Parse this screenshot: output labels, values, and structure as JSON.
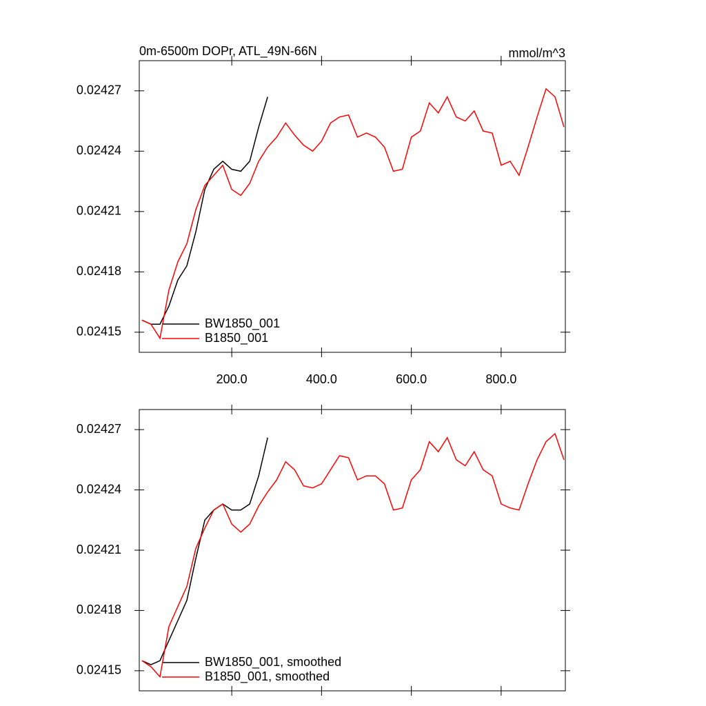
{
  "chart_data": [
    {
      "type": "line",
      "title": "0m-6500m DOPr, ATL_49N-66N",
      "subtitle": "mmol/m^3",
      "x": [
        0,
        20,
        40,
        60,
        80,
        100,
        120,
        140,
        160,
        180,
        200,
        220,
        240,
        260,
        280,
        300,
        320,
        340,
        360,
        380,
        400,
        420,
        440,
        460,
        480,
        500,
        520,
        540,
        560,
        580,
        600,
        620,
        640,
        660,
        680,
        700,
        720,
        740,
        760,
        780,
        800,
        820,
        840,
        860,
        880,
        900,
        920,
        940
      ],
      "series": [
        {
          "name": "BW1850_001",
          "color": "#000000",
          "values": [
            0.024156,
            0.024154,
            0.024154,
            0.024163,
            0.024176,
            0.024183,
            0.0242,
            0.024221,
            0.024231,
            0.024235,
            0.024231,
            0.02423,
            0.024235,
            0.024252,
            0.024267,
            null,
            null,
            null,
            null,
            null,
            null,
            null,
            null,
            null,
            null,
            null,
            null,
            null,
            null,
            null,
            null,
            null,
            null,
            null,
            null,
            null,
            null,
            null,
            null,
            null,
            null,
            null,
            null,
            null,
            null,
            null,
            null,
            null
          ]
        },
        {
          "name": "B1850_001",
          "color": "#ff0000",
          "values": [
            0.024156,
            0.024154,
            0.024147,
            0.024171,
            0.024185,
            0.024194,
            0.024211,
            0.024223,
            0.024228,
            0.024233,
            0.024221,
            0.024218,
            0.024224,
            0.024235,
            0.024242,
            0.024247,
            0.024254,
            0.024248,
            0.024243,
            0.02424,
            0.024245,
            0.024254,
            0.024257,
            0.024258,
            0.024247,
            0.024249,
            0.024247,
            0.024242,
            0.02423,
            0.024231,
            0.024247,
            0.02425,
            0.024264,
            0.024259,
            0.024267,
            0.024257,
            0.024255,
            0.02426,
            0.02425,
            0.024249,
            0.024233,
            0.024235,
            0.024228,
            0.024242,
            0.024257,
            0.024271,
            0.024267,
            0.024252
          ]
        }
      ],
      "xlim": [
        -6,
        943
      ],
      "xticks": [
        {
          "value": 200,
          "label": "200.0"
        },
        {
          "value": 400,
          "label": "400.0"
        },
        {
          "value": 600,
          "label": "600.0"
        },
        {
          "value": 800,
          "label": "800.0"
        }
      ],
      "ylim": [
        0.02414,
        0.024285
      ],
      "yticks": [
        0.02415,
        0.02418,
        0.02421,
        0.02424,
        0.02427
      ],
      "show_xtick_labels": true,
      "legend": "lower left"
    },
    {
      "type": "line",
      "x": [
        0,
        20,
        40,
        60,
        80,
        100,
        120,
        140,
        160,
        180,
        200,
        220,
        240,
        260,
        280,
        300,
        320,
        340,
        360,
        380,
        400,
        420,
        440,
        460,
        480,
        500,
        520,
        540,
        560,
        580,
        600,
        620,
        640,
        660,
        680,
        700,
        720,
        740,
        760,
        780,
        800,
        820,
        840,
        860,
        880,
        900,
        920,
        940
      ],
      "series": [
        {
          "name": "BW1850_001, smoothed",
          "color": "#000000",
          "values": [
            0.024155,
            0.024153,
            0.024155,
            0.024165,
            0.024175,
            0.024185,
            0.024206,
            0.024225,
            0.02423,
            0.024233,
            0.02423,
            0.02423,
            0.024233,
            0.024247,
            0.024266,
            null,
            null,
            null,
            null,
            null,
            null,
            null,
            null,
            null,
            null,
            null,
            null,
            null,
            null,
            null,
            null,
            null,
            null,
            null,
            null,
            null,
            null,
            null,
            null,
            null,
            null,
            null,
            null,
            null,
            null,
            null,
            null,
            null
          ]
        },
        {
          "name": "B1850_001, smoothed",
          "color": "#ff0000",
          "values": [
            0.024155,
            0.024152,
            0.024147,
            0.024172,
            0.024182,
            0.024192,
            0.024211,
            0.024221,
            0.02423,
            0.024233,
            0.024223,
            0.024219,
            0.024223,
            0.024232,
            0.024239,
            0.024245,
            0.024254,
            0.02425,
            0.024242,
            0.024241,
            0.024243,
            0.02425,
            0.024257,
            0.024256,
            0.024245,
            0.024247,
            0.024247,
            0.024243,
            0.02423,
            0.024231,
            0.024245,
            0.02425,
            0.024264,
            0.024259,
            0.024266,
            0.024255,
            0.024252,
            0.024259,
            0.02425,
            0.024247,
            0.024233,
            0.024231,
            0.02423,
            0.024243,
            0.024255,
            0.024264,
            0.024268,
            0.024255
          ]
        }
      ],
      "xlim": [
        -6,
        943
      ],
      "xticks": [
        200,
        400,
        600,
        800
      ],
      "ylim": [
        0.02414,
        0.02428
      ],
      "yticks": [
        0.02415,
        0.02418,
        0.02421,
        0.02424,
        0.02427
      ],
      "show_xtick_labels": false,
      "legend": "lower left"
    }
  ]
}
